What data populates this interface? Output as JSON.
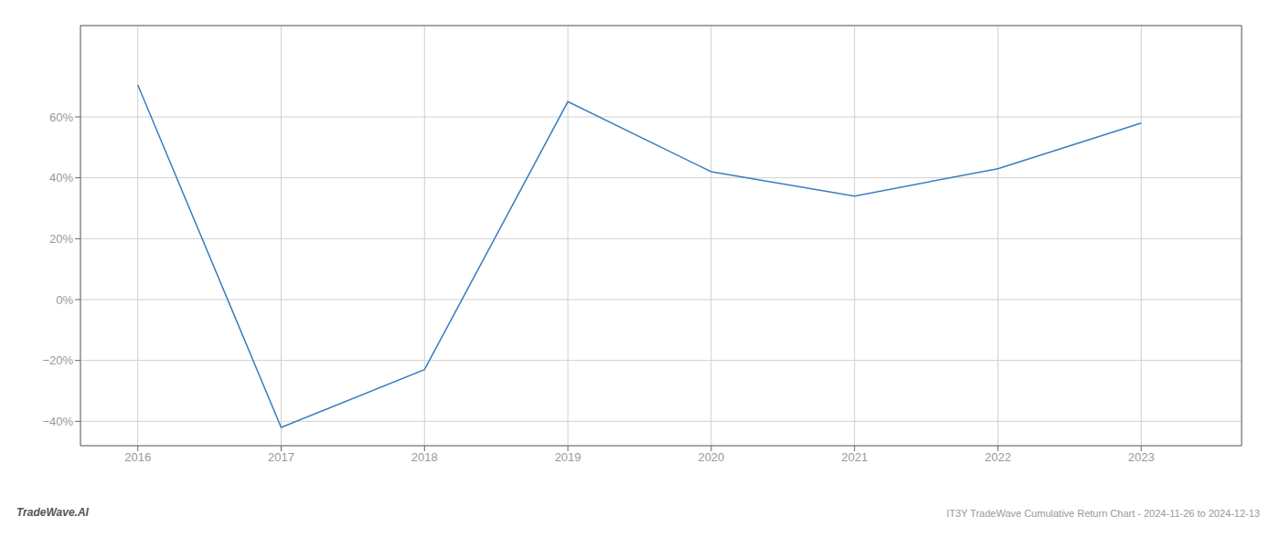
{
  "chart_data": {
    "type": "line",
    "title": "IT3Y TradeWave Cumulative Return Chart - 2024-11-26 to 2024-12-13",
    "annotations": [
      "TradeWave.AI"
    ],
    "x": [
      2016,
      2017,
      2018,
      2019,
      2020,
      2021,
      2022,
      2023
    ],
    "values": [
      70.5,
      -42.0,
      -23.0,
      65.0,
      42.0,
      34.0,
      43.0,
      58.0
    ],
    "color": "#3a7ebf",
    "xlim": [
      2015.6,
      2023.7
    ],
    "xticks": [
      2016,
      2017,
      2018,
      2019,
      2020,
      2021,
      2022,
      2023
    ],
    "ylim": [
      -48,
      90
    ],
    "yticks": [
      {
        "value": -40,
        "label": "−40%"
      },
      {
        "value": -20,
        "label": "−20%"
      },
      {
        "value": 0,
        "label": "0%"
      },
      {
        "value": 20,
        "label": "20%"
      },
      {
        "value": 40,
        "label": "40%"
      },
      {
        "value": 60,
        "label": "60%"
      }
    ],
    "grid": true
  }
}
